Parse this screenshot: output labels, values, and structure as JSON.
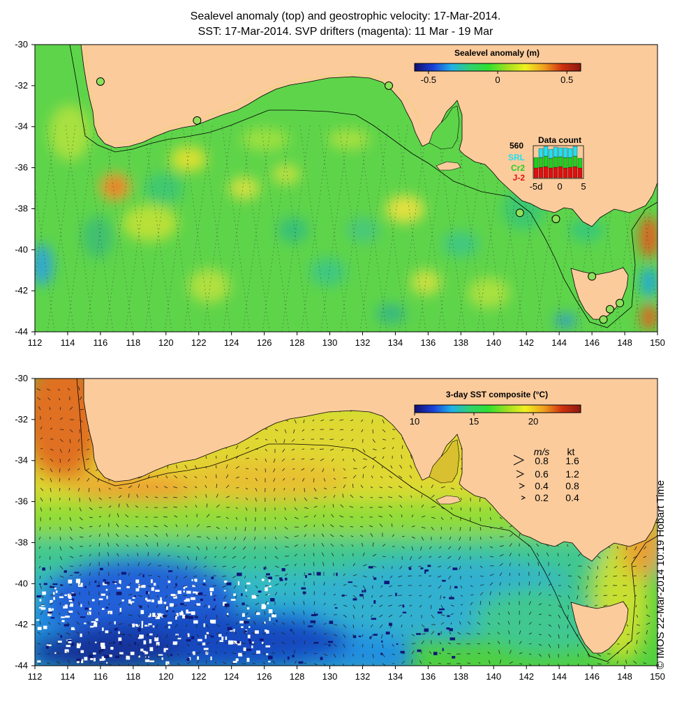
{
  "titles": {
    "line1": "Sealevel anomaly (top) and geostrophic velocity: 17-Mar-2014.",
    "line2": "SST: 17-Mar-2014. SVP drifters (magenta): 11 Mar - 19 Mar"
  },
  "axes": {
    "lon_ticks": [
      "112",
      "114",
      "116",
      "118",
      "120",
      "122",
      "124",
      "126",
      "128",
      "130",
      "132",
      "134",
      "136",
      "138",
      "140",
      "142",
      "144",
      "146",
      "148",
      "150"
    ],
    "lat_ticks": [
      "-30",
      "-32",
      "-34",
      "-36",
      "-38",
      "-40",
      "-42",
      "-44"
    ],
    "lon_range": [
      112,
      150
    ],
    "lat_range": [
      -30,
      -44
    ]
  },
  "sla_panel": {
    "colorbar_title": "Sealevel anomaly (m)",
    "colorbar_ticks": [
      "-0.5",
      "0",
      "0.5"
    ],
    "colorbar_range": [
      -0.6,
      0.6
    ],
    "colors": [
      "#10106e",
      "#1a40d8",
      "#20b0e8",
      "#30d070",
      "#30e030",
      "#a0e020",
      "#f0f020",
      "#f0a020",
      "#d03010",
      "#8a1a10"
    ],
    "data_count": {
      "title": "Data count",
      "max_label": "560",
      "missions": [
        {
          "name": "SRL",
          "color": "#20e0f0"
        },
        {
          "name": "Cr2",
          "color": "#20d020"
        },
        {
          "name": "J-2",
          "color": "#e01010"
        }
      ],
      "x_ticks": [
        "-5d",
        "0",
        "5"
      ]
    },
    "tide_gauges": [
      {
        "lon": 116.0,
        "lat": -31.8
      },
      {
        "lon": 121.9,
        "lat": -33.7
      },
      {
        "lon": 133.6,
        "lat": -32.0
      },
      {
        "lon": 141.6,
        "lat": -38.2
      },
      {
        "lon": 143.8,
        "lat": -38.5
      },
      {
        "lon": 146.0,
        "lat": -41.3
      },
      {
        "lon": 147.1,
        "lat": -42.9
      },
      {
        "lon": 147.7,
        "lat": -42.6
      },
      {
        "lon": 146.7,
        "lat": -43.4
      }
    ]
  },
  "sst_panel": {
    "colorbar_title": "3-day SST composite (°C)",
    "colorbar_ticks": [
      "10",
      "15",
      "20"
    ],
    "colorbar_range": [
      10,
      24
    ],
    "colors": [
      "#10106e",
      "#1a40d8",
      "#20b0e8",
      "#30d070",
      "#30e030",
      "#a0e020",
      "#f0f020",
      "#f0a020",
      "#d03010",
      "#8a1a10"
    ],
    "velocity_legend": {
      "header_ms": "m/s",
      "header_kt": "kt",
      "rows": [
        {
          "ms": "0.8",
          "kt": "1.6"
        },
        {
          "ms": "0.6",
          "kt": "1.2"
        },
        {
          "ms": "0.4",
          "kt": "0.8"
        },
        {
          "ms": "0.2",
          "kt": "0.4"
        }
      ]
    }
  },
  "credit": "© IMOS 22-Mar-2014 10:19 Hobart Time",
  "land_color": "#fbcb9c"
}
